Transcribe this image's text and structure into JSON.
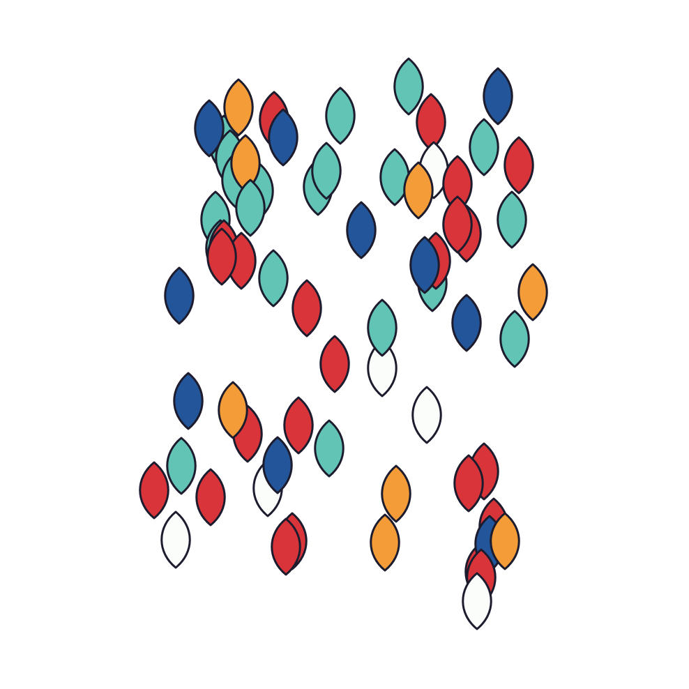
{
  "palette": {
    "red": "#d8343a",
    "teal": "#62c4b4",
    "orange": "#f39c38",
    "blue": "#225599",
    "white": "#fbfdfb",
    "outline": "#1c1c2e",
    "background": "#ffffff"
  },
  "shape": "leaf",
  "leaves": [
    {
      "color": "red"
    },
    {
      "color": "teal"
    },
    {
      "color": "blue"
    },
    {
      "color": "orange"
    },
    {
      "color": "red"
    },
    {
      "color": "blue"
    },
    {
      "color": "teal"
    },
    {
      "color": "teal"
    },
    {
      "color": "teal"
    },
    {
      "color": "orange"
    },
    {
      "color": "teal"
    },
    {
      "color": "teal"
    },
    {
      "color": "teal"
    },
    {
      "color": "teal"
    },
    {
      "color": "teal"
    },
    {
      "color": "teal"
    },
    {
      "color": "red"
    },
    {
      "color": "red"
    },
    {
      "color": "red"
    },
    {
      "color": "teal"
    },
    {
      "color": "blue"
    },
    {
      "color": "teal"
    },
    {
      "color": "red"
    },
    {
      "color": "white"
    },
    {
      "color": "teal"
    },
    {
      "color": "orange"
    },
    {
      "color": "red"
    },
    {
      "color": "blue"
    },
    {
      "color": "teal"
    },
    {
      "color": "red"
    },
    {
      "color": "red"
    },
    {
      "color": "red"
    },
    {
      "color": "teal"
    },
    {
      "color": "teal"
    },
    {
      "color": "red"
    },
    {
      "color": "blue"
    },
    {
      "color": "blue"
    },
    {
      "color": "red"
    },
    {
      "color": "orange"
    },
    {
      "color": "white"
    },
    {
      "color": "teal"
    },
    {
      "color": "blue"
    },
    {
      "color": "teal"
    },
    {
      "color": "red"
    },
    {
      "color": "blue"
    },
    {
      "color": "red"
    },
    {
      "color": "orange"
    },
    {
      "color": "red"
    },
    {
      "color": "teal"
    },
    {
      "color": "white"
    },
    {
      "color": "blue"
    },
    {
      "color": "teal"
    },
    {
      "color": "red"
    },
    {
      "color": "red"
    },
    {
      "color": "white"
    },
    {
      "color": "red"
    },
    {
      "color": "red"
    },
    {
      "color": "orange"
    },
    {
      "color": "orange"
    },
    {
      "color": "white"
    },
    {
      "color": "red"
    },
    {
      "color": "red"
    },
    {
      "color": "red"
    },
    {
      "color": "red"
    },
    {
      "color": "blue"
    },
    {
      "color": "orange"
    },
    {
      "color": "red"
    },
    {
      "color": "white"
    }
  ]
}
